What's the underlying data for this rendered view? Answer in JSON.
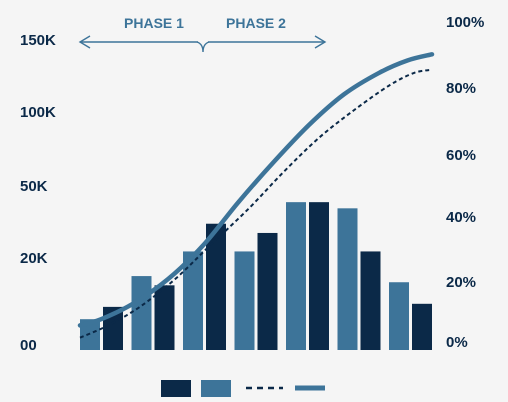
{
  "chart_data": {
    "type": "bar",
    "title": "",
    "xlabel": "",
    "ylabel": "",
    "y_left_ticks": [
      "00",
      "20K",
      "50K",
      "100K",
      "150K"
    ],
    "y_right_ticks": [
      "0%",
      "20%",
      "40%",
      "60%",
      "80%",
      "100%"
    ],
    "y_right_lim": [
      0,
      100
    ],
    "phases": [
      "PHASE 1",
      "PHASE 2"
    ],
    "bar_pairs": [
      {
        "light": 10,
        "dark": 14
      },
      {
        "light": 24,
        "dark": 21
      },
      {
        "light": 32,
        "dark": 41
      },
      {
        "light": 32,
        "dark": 38
      },
      {
        "light": 48,
        "dark": 48
      },
      {
        "light": 46,
        "dark": 32
      },
      {
        "light": 22,
        "dark": 15
      }
    ],
    "series": [
      {
        "values": [
          [
            0,
            8
          ],
          [
            0.06,
            10
          ],
          [
            0.15,
            15
          ],
          [
            0.25,
            23
          ],
          [
            0.35,
            34
          ],
          [
            0.45,
            48
          ],
          [
            0.55,
            61
          ],
          [
            0.65,
            73
          ],
          [
            0.75,
            83
          ],
          [
            0.85,
            90
          ],
          [
            0.93,
            94
          ],
          [
            1,
            96
          ]
        ]
      },
      {
        "values": [
          [
            0,
            4
          ],
          [
            0.08,
            8
          ],
          [
            0.17,
            14
          ],
          [
            0.27,
            23
          ],
          [
            0.37,
            34
          ],
          [
            0.48,
            46
          ],
          [
            0.58,
            58
          ],
          [
            0.68,
            69
          ],
          [
            0.78,
            78
          ],
          [
            0.88,
            86
          ],
          [
            0.95,
            90
          ],
          [
            1,
            91
          ]
        ]
      }
    ],
    "colors": {
      "dark": "#0b2948",
      "light": "#3d7499",
      "text": "#3d7499",
      "curve": "#3d7499",
      "dashed": "#0b2948"
    },
    "legend_position": "bottom"
  }
}
